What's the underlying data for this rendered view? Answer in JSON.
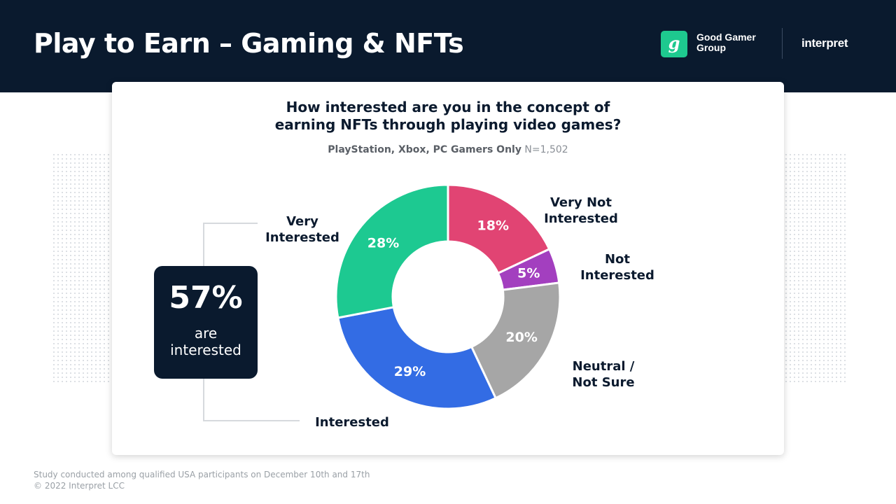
{
  "header": {
    "title": "Play to Earn – Gaming & NFTs",
    "logo_letter": "g",
    "brand_name": [
      "Good Gamer",
      "Group"
    ],
    "brand2": "interpret"
  },
  "chart_data": {
    "type": "pie",
    "title": [
      "How interested are you in the concept of",
      "earning NFTs through playing video games?"
    ],
    "subtitle_label": "PlayStation, Xbox, PC Gamers Only",
    "subtitle_n": "N=1,502",
    "slices": [
      {
        "name": "Very Not Interested",
        "label_lines": [
          "Very Not",
          "Interested"
        ],
        "value": 18,
        "display": "18%",
        "color": "#e14473"
      },
      {
        "name": "Not Interested",
        "label_lines": [
          "Not",
          "Interested"
        ],
        "value": 5,
        "display": "5%",
        "color": "#a33fbf"
      },
      {
        "name": "Neutral / Not Sure",
        "label_lines": [
          "Neutral /",
          "Not Sure"
        ],
        "value": 20,
        "display": "20%",
        "color": "#a6a6a6"
      },
      {
        "name": "Interested",
        "label_lines": [
          "Interested"
        ],
        "value": 29,
        "display": "29%",
        "color": "#336ce4"
      },
      {
        "name": "Very Interested",
        "label_lines": [
          "Very",
          "Interested"
        ],
        "value": 28,
        "display": "28%",
        "color": "#1dc991"
      }
    ],
    "legend": "none"
  },
  "summary": {
    "value": "57%",
    "caption": [
      "are",
      "interested"
    ]
  },
  "footer": {
    "lines": [
      "Study conducted among qualified USA participants on December 10th and 17th",
      "© 2022 Interpret LCC"
    ]
  }
}
